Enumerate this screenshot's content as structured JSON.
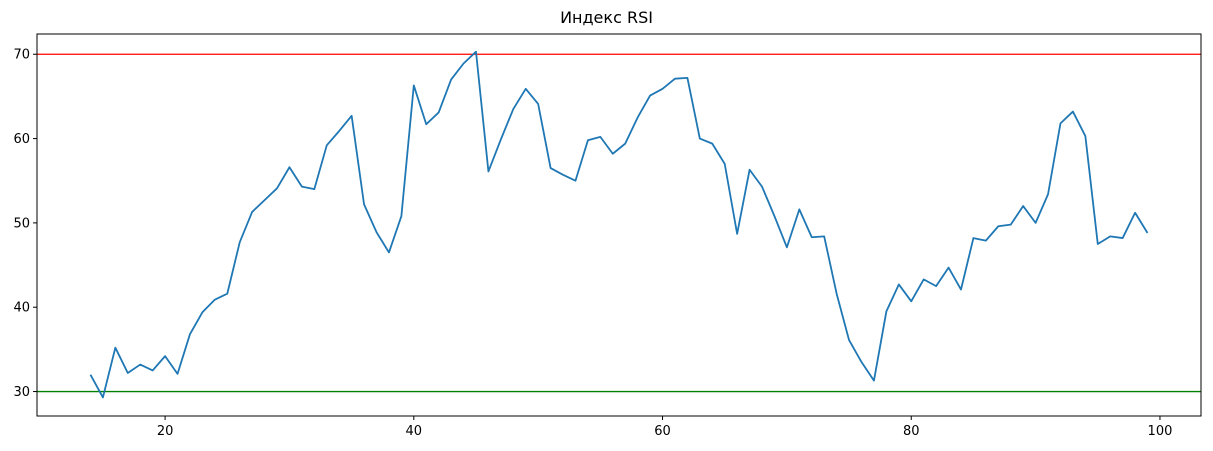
{
  "chart_data": {
    "type": "line",
    "title": "Индекс RSI",
    "xlabel": "",
    "ylabel": "",
    "xlim": [
      9.7,
      103.3
    ],
    "ylim": [
      27.1,
      72.4
    ],
    "xticks": [
      20,
      40,
      60,
      80,
      100
    ],
    "yticks": [
      30,
      40,
      50,
      60,
      70
    ],
    "grid": false,
    "reference_lines": [
      {
        "y": 70,
        "color": "#ff0000"
      },
      {
        "y": 30,
        "color": "#008000"
      }
    ],
    "series": [
      {
        "color": "#1f77b4",
        "x": [
          14,
          15,
          16,
          17,
          18,
          19,
          20,
          21,
          22,
          23,
          24,
          25,
          26,
          27,
          28,
          29,
          30,
          31,
          32,
          33,
          34,
          35,
          36,
          37,
          38,
          39,
          40,
          41,
          42,
          43,
          44,
          45,
          46,
          47,
          48,
          49,
          50,
          51,
          52,
          53,
          54,
          55,
          56,
          57,
          58,
          59,
          60,
          61,
          62,
          63,
          64,
          65,
          66,
          67,
          68,
          69,
          70,
          71,
          72,
          73,
          74,
          75,
          76,
          77,
          78,
          79,
          80,
          81,
          82,
          83,
          84,
          85,
          86,
          87,
          88,
          89,
          90,
          91,
          92,
          93,
          94,
          95,
          96,
          97,
          98,
          99
        ],
        "values": [
          32.0,
          29.3,
          35.2,
          32.2,
          33.2,
          32.5,
          34.2,
          32.1,
          36.8,
          39.4,
          40.9,
          41.6,
          47.7,
          51.3,
          52.7,
          54.1,
          56.6,
          54.3,
          54.0,
          59.2,
          60.9,
          62.7,
          52.2,
          48.9,
          46.5,
          50.8,
          66.3,
          61.7,
          63.1,
          67.0,
          68.9,
          70.3,
          56.1,
          59.9,
          63.5,
          65.9,
          64.1,
          56.5,
          55.7,
          55.0,
          59.8,
          60.2,
          58.2,
          59.4,
          62.5,
          65.1,
          65.9,
          67.1,
          67.2,
          60.0,
          59.4,
          57.0,
          48.7,
          56.3,
          54.3,
          50.8,
          47.1,
          51.6,
          48.3,
          48.4,
          41.6,
          36.1,
          33.5,
          31.3,
          39.5,
          42.7,
          40.7,
          43.3,
          42.5,
          44.7,
          42.1,
          48.2,
          47.9,
          49.6,
          49.8,
          52.0,
          50.0,
          53.4,
          61.8,
          63.2,
          60.3,
          47.5,
          48.4,
          48.2,
          51.2,
          48.8
        ]
      }
    ]
  }
}
